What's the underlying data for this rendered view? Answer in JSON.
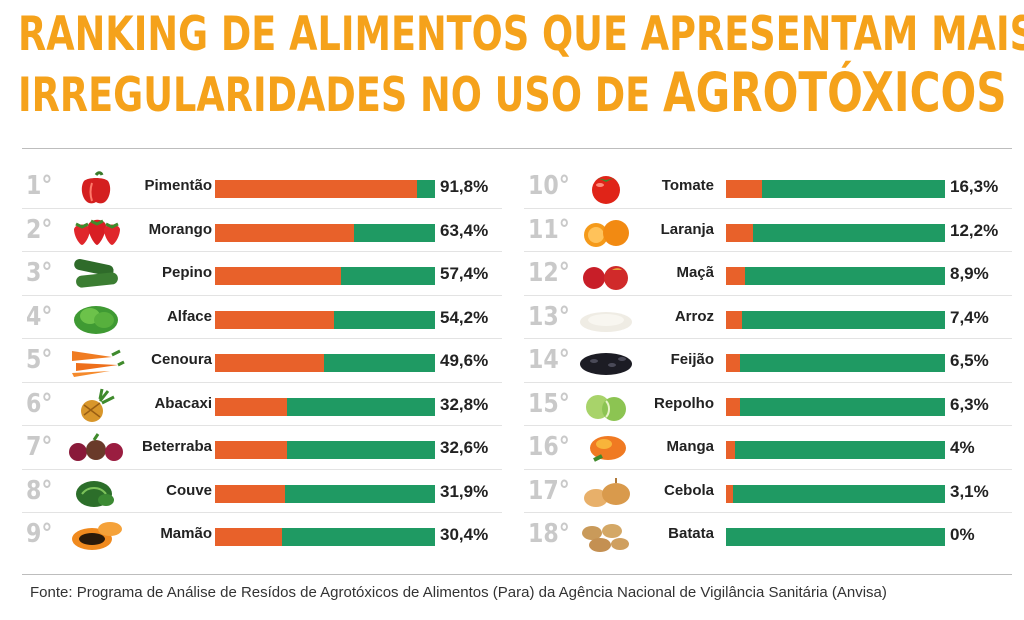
{
  "title": {
    "line1": "RANKING DE ALIMENTOS QUE APRESENTAM MAIS",
    "line2_prefix": "IRREGULARIDADES NO USO DE ",
    "line2_highlight": "AGROTÓXICOS"
  },
  "source": "Fonte: Programa de Análise de Resídos de Agrotóxicos de Alimentos (Para) da Agência Nacional de Vigilância Sanitária (Anvisa)",
  "colors": {
    "title": "#f5a21b",
    "irregular": "#e8612a",
    "regular": "#1f9a63",
    "rank": "#c9c9c9"
  },
  "chart_data": {
    "type": "bar",
    "orientation": "horizontal",
    "stacked": true,
    "xlim": [
      0,
      100
    ],
    "grid": false,
    "categories": [
      "Pimentão",
      "Morango",
      "Pepino",
      "Alface",
      "Cenoura",
      "Abacaxi",
      "Beterraba",
      "Couve",
      "Mamão",
      "Tomate",
      "Laranja",
      "Maçã",
      "Arroz",
      "Feijão",
      "Repolho",
      "Manga",
      "Cebola",
      "Batata"
    ],
    "ranks": [
      "1°",
      "2°",
      "3°",
      "4°",
      "5°",
      "6°",
      "7°",
      "8°",
      "9°",
      "10°",
      "11°",
      "12°",
      "13°",
      "14°",
      "15°",
      "16°",
      "17°",
      "18°"
    ],
    "values": [
      91.8,
      63.4,
      57.4,
      54.2,
      49.6,
      32.8,
      32.6,
      31.9,
      30.4,
      16.3,
      12.2,
      8.9,
      7.4,
      6.5,
      6.3,
      4,
      3.1,
      0
    ],
    "value_labels": [
      "91,8%",
      "63,4%",
      "57,4%",
      "54,2%",
      "49,6%",
      "32,8%",
      "32,6%",
      "31,9%",
      "30,4%",
      "16,3%",
      "12,2%",
      "8,9%",
      "7,4%",
      "6,5%",
      "6,3%",
      "4%",
      "3,1%",
      "0%"
    ],
    "icons": [
      "pepper-icon",
      "strawberry-icon",
      "cucumber-icon",
      "lettuce-icon",
      "carrot-icon",
      "pineapple-icon",
      "beet-icon",
      "kale-icon",
      "papaya-icon",
      "tomato-icon",
      "orange-icon",
      "apple-icon",
      "rice-icon",
      "bean-icon",
      "cabbage-icon",
      "mango-icon",
      "onion-icon",
      "potato-icon"
    ]
  }
}
